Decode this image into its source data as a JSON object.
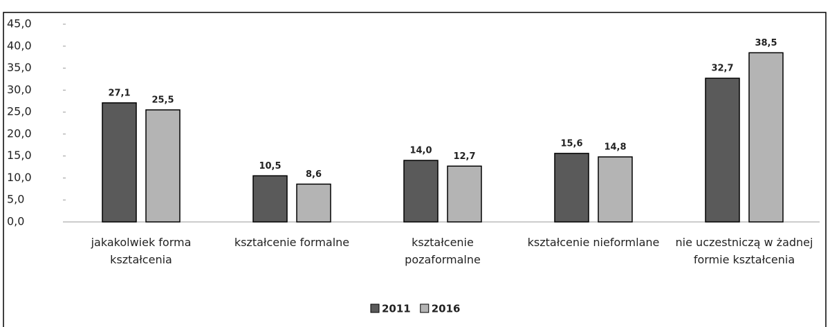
{
  "chart_data": {
    "type": "bar",
    "categories": [
      "jakakolwiek forma kształcenia",
      "kształcenie formalne",
      "kształcenie pozaformalne",
      "kształcenie nieformlane",
      "nie uczestniczą w żadnej formie kształcenia"
    ],
    "series": [
      {
        "name": "2011",
        "color": "#5a5a5a",
        "values": [
          27.1,
          10.5,
          14.0,
          15.6,
          32.7
        ],
        "value_labels": [
          "27,1",
          "10,5",
          "14,0",
          "15,6",
          "32,7"
        ]
      },
      {
        "name": "2016",
        "color": "#b4b4b4",
        "values": [
          25.5,
          8.6,
          12.7,
          14.8,
          38.5
        ],
        "value_labels": [
          "25,5",
          "8,6",
          "12,7",
          "14,8",
          "38,5"
        ]
      }
    ],
    "ylim": [
      0,
      45
    ],
    "yticks": [
      {
        "value": 0,
        "label": "0,0"
      },
      {
        "value": 5,
        "label": "5,0"
      },
      {
        "value": 10,
        "label": "10,0"
      },
      {
        "value": 15,
        "label": "15,0"
      },
      {
        "value": 20,
        "label": "20,0"
      },
      {
        "value": 25,
        "label": "25,0"
      },
      {
        "value": 30,
        "label": "30,0"
      },
      {
        "value": 35,
        "label": "35,0"
      },
      {
        "value": 40,
        "label": "40,0"
      },
      {
        "value": 45,
        "label": "45,0"
      }
    ],
    "grid": false,
    "legend": "bottom"
  }
}
